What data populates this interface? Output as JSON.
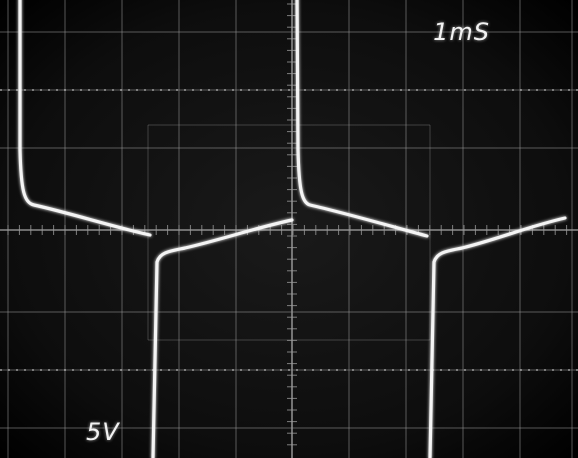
{
  "scope": {
    "time_div_label": "1mS",
    "volt_div_label": "5V",
    "colors": {
      "screen": "#0a0a0a",
      "graticule": "#9a9a9a",
      "trace": "#f4f4f4"
    }
  }
}
